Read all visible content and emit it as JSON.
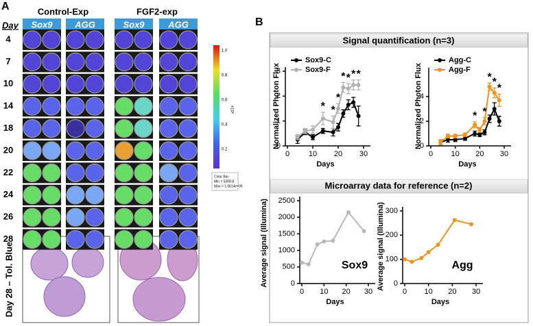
{
  "panel_a": {
    "label": "A",
    "day_header": "Day",
    "groups": [
      {
        "title": "Control-Exp",
        "columns": [
          "Sox9",
          "AGG"
        ]
      },
      {
        "title": "FGF2-exp",
        "columns": [
          "Sox9",
          "AGG"
        ]
      }
    ],
    "days": [
      4,
      7,
      10,
      14,
      18,
      20,
      22,
      24,
      26,
      28
    ],
    "colorbar_ticks": [
      "1.0",
      "0.8",
      "0.6",
      "0.4",
      "0.2"
    ],
    "colorbar_unit": "×10⁶",
    "colorbar_note": [
      "Color Bar",
      "Min = 5308.8",
      "Max = 1.0614e+06"
    ],
    "stain_label": "Day 28 – Tol. Blue"
  },
  "panel_b": {
    "label": "B",
    "sections": [
      "Signal quantification (n=3)",
      "Microarray data for reference (n=2)"
    ]
  },
  "chart_data": [
    {
      "type": "line",
      "xlabel": "Days",
      "ylabel": "Normalized Photon Flux",
      "x": [
        4,
        7,
        10,
        14,
        18,
        20,
        22,
        24,
        26,
        28
      ],
      "series": [
        {
          "name": "Sox9-C",
          "color": "#000000",
          "values": [
            0.25,
            0.55,
            0.35,
            0.6,
            0.55,
            0.75,
            1.3,
            1.65,
            1.75,
            1.2
          ],
          "errors": [
            0.15,
            0.1,
            0.1,
            0.1,
            0.15,
            0.15,
            0.15,
            0.2,
            0.2,
            0.4
          ]
        },
        {
          "name": "Sox9-F",
          "color": "#b0b0b0",
          "values": [
            0.35,
            0.6,
            0.65,
            1.1,
            0.95,
            1.5,
            2.35,
            2.3,
            2.45,
            2.45
          ],
          "errors": [
            0.1,
            0.1,
            0.15,
            0.25,
            0.25,
            0.2,
            0.2,
            0.2,
            0.2,
            0.2
          ]
        }
      ],
      "significance_marker": "*",
      "significant_x": [
        14,
        18,
        20,
        22,
        24,
        26,
        28
      ],
      "xlim": [
        0,
        30
      ],
      "xticks": [
        0,
        10,
        20,
        30
      ],
      "ylim": [
        0,
        3
      ],
      "yticks": [
        0,
        1,
        2,
        3
      ]
    },
    {
      "type": "line",
      "xlabel": "Days",
      "ylabel": "Normalized Photon Flux",
      "x": [
        4,
        7,
        10,
        14,
        18,
        20,
        22,
        24,
        26,
        28
      ],
      "series": [
        {
          "name": "Agg-C",
          "color": "#000000",
          "values": [
            0.3,
            0.5,
            0.5,
            0.6,
            1.0,
            0.9,
            1.1,
            2.2,
            3.0,
            2.0
          ],
          "errors": [
            0.2,
            0.2,
            0.15,
            0.15,
            0.2,
            0.15,
            0.2,
            0.3,
            0.5,
            0.4
          ]
        },
        {
          "name": "Agg-F",
          "color": "#f0931e",
          "values": [
            0.3,
            0.8,
            0.8,
            0.9,
            1.7,
            1.3,
            2.0,
            4.8,
            4.3,
            3.7
          ],
          "errors": [
            0.2,
            0.15,
            0.15,
            0.15,
            0.25,
            0.2,
            0.3,
            0.3,
            0.4,
            0.5
          ]
        }
      ],
      "significance_marker": "*",
      "significant_x": [
        18,
        22,
        24,
        26,
        28
      ],
      "xlim": [
        0,
        30
      ],
      "xticks": [
        0,
        10,
        20,
        30
      ],
      "ylim": [
        0,
        6
      ],
      "yticks": [
        0,
        2,
        4
      ]
    },
    {
      "type": "line",
      "xlabel": "Days",
      "ylabel": "Average signal (Illumina)",
      "label": "Sox9",
      "color": "#b8b8b8",
      "x": [
        0,
        3,
        7,
        10,
        14,
        21,
        28
      ],
      "values": [
        630,
        580,
        1180,
        1270,
        1290,
        2150,
        1580
      ],
      "xlim": [
        0,
        30
      ],
      "xticks": [
        0,
        10,
        20,
        30
      ],
      "ylim": [
        0,
        2500
      ],
      "yticks": [
        0,
        500,
        1000,
        1500,
        2000,
        2500
      ]
    },
    {
      "type": "line",
      "xlabel": "Days",
      "ylabel": "Average signal (Illumina)",
      "label": "Agg",
      "color": "#f0931e",
      "x": [
        0,
        3,
        7,
        10,
        14,
        21,
        28
      ],
      "values": [
        100,
        90,
        105,
        130,
        160,
        262,
        245
      ],
      "xlim": [
        0,
        30
      ],
      "xticks": [
        0,
        10,
        20,
        30
      ],
      "ylim": [
        0,
        300
      ],
      "yticks": [
        0,
        100,
        200,
        300
      ]
    }
  ]
}
